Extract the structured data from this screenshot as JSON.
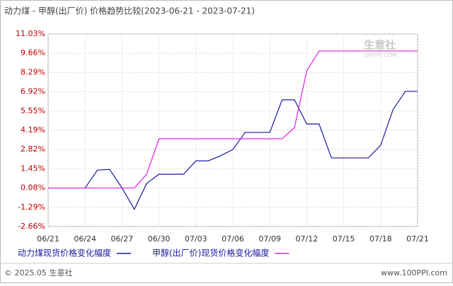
{
  "chart_data": {
    "type": "line",
    "title": "动力煤 - 甲醇(出厂价) 价格趋势比较(2023-06-21 - 2023-07-21)",
    "categories": [
      "06/21",
      null,
      null,
      "06/24",
      null,
      null,
      "06/27",
      null,
      null,
      "06/30",
      null,
      null,
      "07/03",
      null,
      null,
      "07/06",
      null,
      null,
      "07/09",
      null,
      null,
      "07/12",
      null,
      null,
      "07/15",
      null,
      null,
      "07/18",
      null,
      null,
      "07/21"
    ],
    "series": [
      {
        "name": "动力煤现货价格变化幅度",
        "color": "#1a1aa0",
        "values": [
          0.08,
          0.08,
          0.08,
          0.08,
          1.35,
          1.4,
          0.08,
          -1.43,
          0.4,
          1.06,
          1.06,
          1.06,
          2.01,
          2.01,
          2.37,
          2.82,
          4.03,
          4.03,
          4.03,
          6.35,
          6.35,
          4.63,
          4.63,
          2.22,
          2.22,
          2.22,
          2.22,
          3.12,
          5.64,
          6.95,
          6.95
        ]
      },
      {
        "name": "甲醇(出厂价)现货价格变化幅度",
        "color": "#e020e0",
        "values": [
          0.08,
          0.08,
          0.08,
          0.08,
          0.08,
          0.08,
          0.08,
          0.08,
          1.06,
          3.58,
          3.58,
          3.58,
          3.58,
          3.58,
          3.58,
          3.58,
          3.58,
          3.58,
          3.58,
          3.58,
          4.38,
          8.41,
          9.82,
          9.82,
          9.82,
          9.82,
          9.82,
          9.82,
          9.82,
          9.82,
          9.82
        ]
      }
    ],
    "ylim": [
      -2.66,
      11.03
    ],
    "yticks": [
      {
        "value": 11.03,
        "label": "11.03%"
      },
      {
        "value": 9.66,
        "label": "9.66%"
      },
      {
        "value": 8.29,
        "label": "8.29%"
      },
      {
        "value": 6.92,
        "label": "6.92%"
      },
      {
        "value": 5.55,
        "label": "5.55%"
      },
      {
        "value": 4.19,
        "label": "4.19%"
      },
      {
        "value": 2.82,
        "label": "2.82%"
      },
      {
        "value": 1.45,
        "label": "1.45%"
      },
      {
        "value": 0.08,
        "label": "0.08%"
      },
      {
        "value": -1.29,
        "label": "-1.29%"
      },
      {
        "value": -2.66,
        "label": "-2.66%"
      }
    ],
    "grid": true,
    "watermark": {
      "name": "生意社",
      "site": "100PPI.COM"
    },
    "footer": {
      "copyright": "© 2025.05 生意社",
      "site": "www.100PPI.com"
    }
  }
}
